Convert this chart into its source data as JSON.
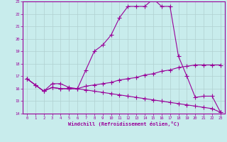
{
  "xlabel": "Windchill (Refroidissement éolien,°C)",
  "bg_color": "#c8ecec",
  "line_color": "#990099",
  "grid_color": "#b0d0d0",
  "xlim": [
    -0.5,
    23.5
  ],
  "ylim": [
    14,
    23
  ],
  "yticks": [
    14,
    15,
    16,
    17,
    18,
    19,
    20,
    21,
    22,
    23
  ],
  "xticks": [
    0,
    1,
    2,
    3,
    4,
    5,
    6,
    7,
    8,
    9,
    10,
    11,
    12,
    13,
    14,
    15,
    16,
    17,
    18,
    19,
    20,
    21,
    22,
    23
  ],
  "series1_x": [
    0,
    1,
    2,
    3,
    4,
    5,
    6,
    7,
    8,
    9,
    10,
    11,
    12,
    13,
    14,
    15,
    16,
    17,
    18,
    19,
    20,
    21,
    22,
    23
  ],
  "series1_y": [
    16.8,
    16.3,
    15.8,
    16.4,
    16.4,
    16.1,
    16.0,
    17.5,
    19.0,
    19.5,
    20.3,
    21.7,
    22.6,
    22.6,
    22.6,
    23.2,
    22.6,
    22.6,
    18.6,
    17.0,
    15.3,
    15.4,
    15.4,
    14.1
  ],
  "series2_x": [
    0,
    1,
    2,
    3,
    4,
    5,
    6,
    7,
    8,
    9,
    10,
    11,
    12,
    13,
    14,
    15,
    16,
    17,
    18,
    19,
    20,
    21,
    22,
    23
  ],
  "series2_y": [
    16.8,
    16.3,
    15.8,
    16.1,
    16.0,
    16.0,
    16.0,
    16.2,
    16.3,
    16.4,
    16.5,
    16.7,
    16.8,
    16.9,
    17.1,
    17.2,
    17.4,
    17.5,
    17.7,
    17.8,
    17.9,
    17.9,
    17.9,
    17.9
  ],
  "series3_x": [
    0,
    1,
    2,
    3,
    4,
    5,
    6,
    7,
    8,
    9,
    10,
    11,
    12,
    13,
    14,
    15,
    16,
    17,
    18,
    19,
    20,
    21,
    22,
    23
  ],
  "series3_y": [
    16.8,
    16.3,
    15.8,
    16.1,
    16.0,
    16.0,
    16.0,
    15.9,
    15.8,
    15.7,
    15.6,
    15.5,
    15.4,
    15.3,
    15.2,
    15.1,
    15.0,
    14.9,
    14.8,
    14.7,
    14.6,
    14.5,
    14.4,
    14.1
  ]
}
